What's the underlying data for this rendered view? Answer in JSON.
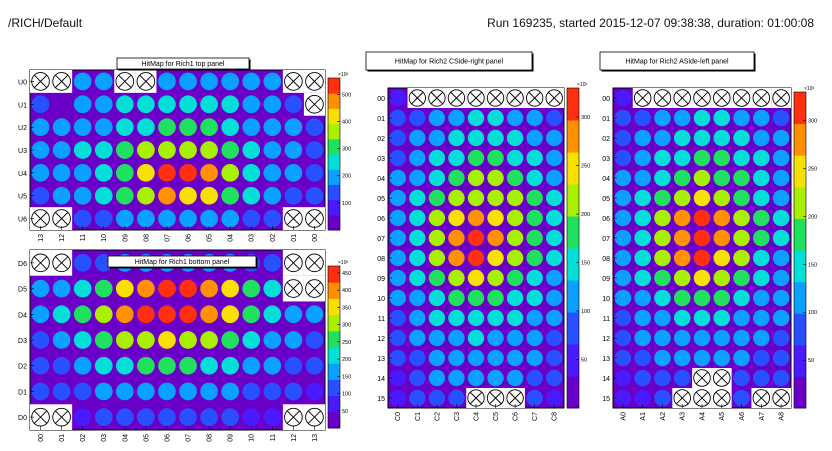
{
  "header": {
    "path": "/RICH/Default",
    "run_info": "Run 169235, started 2015-12-07 09:38:38, duration: 01:00:08"
  },
  "palette": [
    "#6a00c8",
    "#4a1aff",
    "#2850ff",
    "#0aa0ff",
    "#00e0d8",
    "#20e060",
    "#a8f000",
    "#f8e000",
    "#ff9000",
    "#ff3010"
  ],
  "chart_data": [
    {
      "type": "heatmap",
      "title": "HitMap for Rich1 top panel",
      "rows": [
        "U0",
        "U1",
        "U2",
        "U3",
        "U4",
        "U5",
        "U6"
      ],
      "columns": [
        "13",
        "12",
        "11",
        "10",
        "09",
        "08",
        "07",
        "06",
        "05",
        "04",
        "03",
        "02",
        "01",
        "00"
      ],
      "colorbar": {
        "exponent": "×10²",
        "ticks": [
          "100",
          "200",
          "300",
          "400",
          "500"
        ],
        "range": [
          0,
          560
        ]
      },
      "values": [
        [
          0,
          0,
          200,
          190,
          0,
          0,
          200,
          210,
          200,
          190,
          180,
          170,
          0,
          0
        ],
        [
          150,
          40,
          180,
          190,
          230,
          250,
          260,
          260,
          250,
          230,
          200,
          180,
          150,
          0
        ],
        [
          170,
          180,
          200,
          220,
          240,
          270,
          300,
          300,
          280,
          250,
          220,
          190,
          170,
          150
        ],
        [
          180,
          200,
          230,
          260,
          300,
          350,
          380,
          380,
          360,
          320,
          270,
          220,
          180,
          160
        ],
        [
          170,
          190,
          220,
          260,
          310,
          420,
          520,
          520,
          450,
          340,
          260,
          210,
          170,
          150
        ],
        [
          160,
          180,
          200,
          240,
          290,
          380,
          450,
          440,
          400,
          310,
          240,
          200,
          160,
          140
        ],
        [
          0,
          0,
          140,
          160,
          180,
          200,
          210,
          210,
          200,
          180,
          160,
          140,
          0,
          0
        ]
      ]
    },
    {
      "type": "heatmap",
      "title": "HitMap for Rich1 bottom panel",
      "rows": [
        "D6",
        "D5",
        "D4",
        "D3",
        "D2",
        "D1",
        "D0"
      ],
      "columns": [
        "00",
        "01",
        "02",
        "03",
        "04",
        "05",
        "06",
        "07",
        "08",
        "09",
        "10",
        "11",
        "12",
        "13"
      ],
      "colorbar": {
        "exponent": "×10²",
        "ticks": [
          "50",
          "100",
          "150",
          "200",
          "250",
          "300",
          "350",
          "400",
          "450"
        ],
        "range": [
          0,
          470
        ]
      },
      "values": [
        [
          0,
          0,
          110,
          130,
          160,
          170,
          180,
          180,
          170,
          160,
          130,
          110,
          0,
          0
        ],
        [
          150,
          180,
          220,
          280,
          350,
          420,
          450,
          440,
          400,
          330,
          260,
          200,
          0,
          0
        ],
        [
          160,
          200,
          250,
          320,
          400,
          440,
          460,
          450,
          410,
          340,
          270,
          210,
          170,
          150
        ],
        [
          140,
          170,
          210,
          250,
          290,
          320,
          330,
          320,
          300,
          260,
          220,
          180,
          150,
          130
        ],
        [
          120,
          140,
          170,
          200,
          220,
          240,
          240,
          240,
          220,
          200,
          170,
          150,
          120,
          110
        ],
        [
          100,
          120,
          130,
          150,
          160,
          170,
          170,
          170,
          160,
          150,
          130,
          120,
          100,
          90
        ],
        [
          0,
          0,
          90,
          100,
          110,
          120,
          120,
          120,
          110,
          100,
          90,
          80,
          0,
          0
        ]
      ]
    },
    {
      "type": "heatmap",
      "title": "HitMap for Rich2 CSide-right panel",
      "rows": [
        "00",
        "01",
        "02",
        "03",
        "04",
        "05",
        "06",
        "07",
        "08",
        "09",
        "10",
        "11",
        "12",
        "13",
        "14",
        "15"
      ],
      "columns": [
        "C0",
        "C1",
        "C2",
        "C3",
        "C4",
        "C5",
        "C6",
        "C7",
        "C8"
      ],
      "colorbar": {
        "exponent": "×10²",
        "ticks": [
          "50",
          "100",
          "150",
          "200",
          "250",
          "300"
        ],
        "range": [
          0,
          330
        ]
      },
      "values": [
        [
          60,
          0,
          0,
          0,
          0,
          0,
          0,
          0,
          0
        ],
        [
          70,
          90,
          110,
          130,
          140,
          140,
          130,
          110,
          90
        ],
        [
          80,
          100,
          120,
          140,
          150,
          150,
          140,
          120,
          100
        ],
        [
          90,
          110,
          140,
          160,
          170,
          170,
          160,
          140,
          110
        ],
        [
          100,
          130,
          160,
          180,
          200,
          200,
          180,
          160,
          130
        ],
        [
          110,
          140,
          180,
          210,
          230,
          220,
          200,
          170,
          140
        ],
        [
          120,
          150,
          200,
          250,
          280,
          250,
          210,
          180,
          140
        ],
        [
          120,
          160,
          220,
          290,
          310,
          270,
          220,
          180,
          140
        ],
        [
          120,
          160,
          210,
          280,
          300,
          260,
          210,
          170,
          140
        ],
        [
          110,
          150,
          190,
          230,
          250,
          220,
          190,
          160,
          130
        ],
        [
          100,
          130,
          160,
          180,
          190,
          180,
          160,
          140,
          110
        ],
        [
          90,
          110,
          140,
          150,
          160,
          150,
          140,
          120,
          100
        ],
        [
          80,
          100,
          120,
          130,
          140,
          130,
          120,
          110,
          90
        ],
        [
          70,
          90,
          110,
          120,
          120,
          120,
          110,
          100,
          80
        ],
        [
          60,
          80,
          100,
          110,
          110,
          110,
          100,
          90,
          70
        ],
        [
          50,
          70,
          90,
          90,
          0,
          0,
          0,
          80,
          60
        ]
      ]
    },
    {
      "type": "heatmap",
      "title": "HitMap for Rich2 ASide-left panel",
      "rows": [
        "00",
        "01",
        "02",
        "03",
        "04",
        "05",
        "06",
        "07",
        "08",
        "09",
        "10",
        "11",
        "12",
        "13",
        "14",
        "15"
      ],
      "columns": [
        "A0",
        "A1",
        "A2",
        "A3",
        "A4",
        "A5",
        "A6",
        "A7",
        "A8"
      ],
      "colorbar": {
        "exponent": "×10³",
        "ticks": [
          "50",
          "100",
          "150",
          "200",
          "250",
          "300"
        ],
        "range": [
          0,
          330
        ]
      },
      "values": [
        [
          60,
          0,
          0,
          0,
          0,
          0,
          0,
          0,
          0
        ],
        [
          70,
          90,
          110,
          130,
          140,
          140,
          130,
          110,
          90
        ],
        [
          80,
          100,
          120,
          140,
          150,
          150,
          140,
          120,
          100
        ],
        [
          90,
          110,
          140,
          160,
          170,
          170,
          160,
          140,
          110
        ],
        [
          100,
          130,
          160,
          190,
          200,
          190,
          170,
          150,
          120
        ],
        [
          110,
          140,
          180,
          230,
          260,
          230,
          190,
          160,
          130
        ],
        [
          120,
          150,
          200,
          270,
          300,
          270,
          210,
          170,
          140
        ],
        [
          120,
          160,
          220,
          290,
          310,
          280,
          220,
          170,
          140
        ],
        [
          120,
          160,
          210,
          280,
          300,
          260,
          200,
          160,
          130
        ],
        [
          110,
          150,
          180,
          220,
          240,
          220,
          180,
          150,
          120
        ],
        [
          100,
          130,
          150,
          170,
          180,
          170,
          150,
          130,
          110
        ],
        [
          90,
          110,
          130,
          140,
          150,
          140,
          130,
          110,
          100
        ],
        [
          80,
          100,
          110,
          120,
          130,
          120,
          110,
          100,
          90
        ],
        [
          70,
          90,
          100,
          110,
          110,
          110,
          100,
          90,
          80
        ],
        [
          60,
          80,
          90,
          90,
          0,
          0,
          90,
          80,
          70
        ],
        [
          50,
          60,
          80,
          0,
          0,
          0,
          70,
          0,
          0
        ]
      ]
    }
  ]
}
